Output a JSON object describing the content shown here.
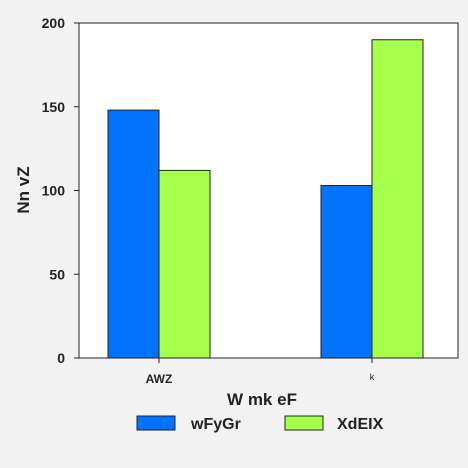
{
  "chart_data": {
    "type": "bar",
    "title": "",
    "xlabel": "W mk eF",
    "ylabel": "Nn  vZ",
    "categories": [
      "AWZ",
      "k"
    ],
    "series": [
      {
        "name": "wFyGr",
        "values": [
          148,
          103
        ],
        "color": "#0073ff"
      },
      {
        "name": "XdEIX",
        "values": [
          112,
          190
        ],
        "color": "#a6ff4d"
      }
    ],
    "ylim": [
      0,
      200
    ],
    "yticks": [
      0,
      50,
      100,
      150,
      200
    ],
    "grid": false,
    "legend_position": "bottom"
  }
}
